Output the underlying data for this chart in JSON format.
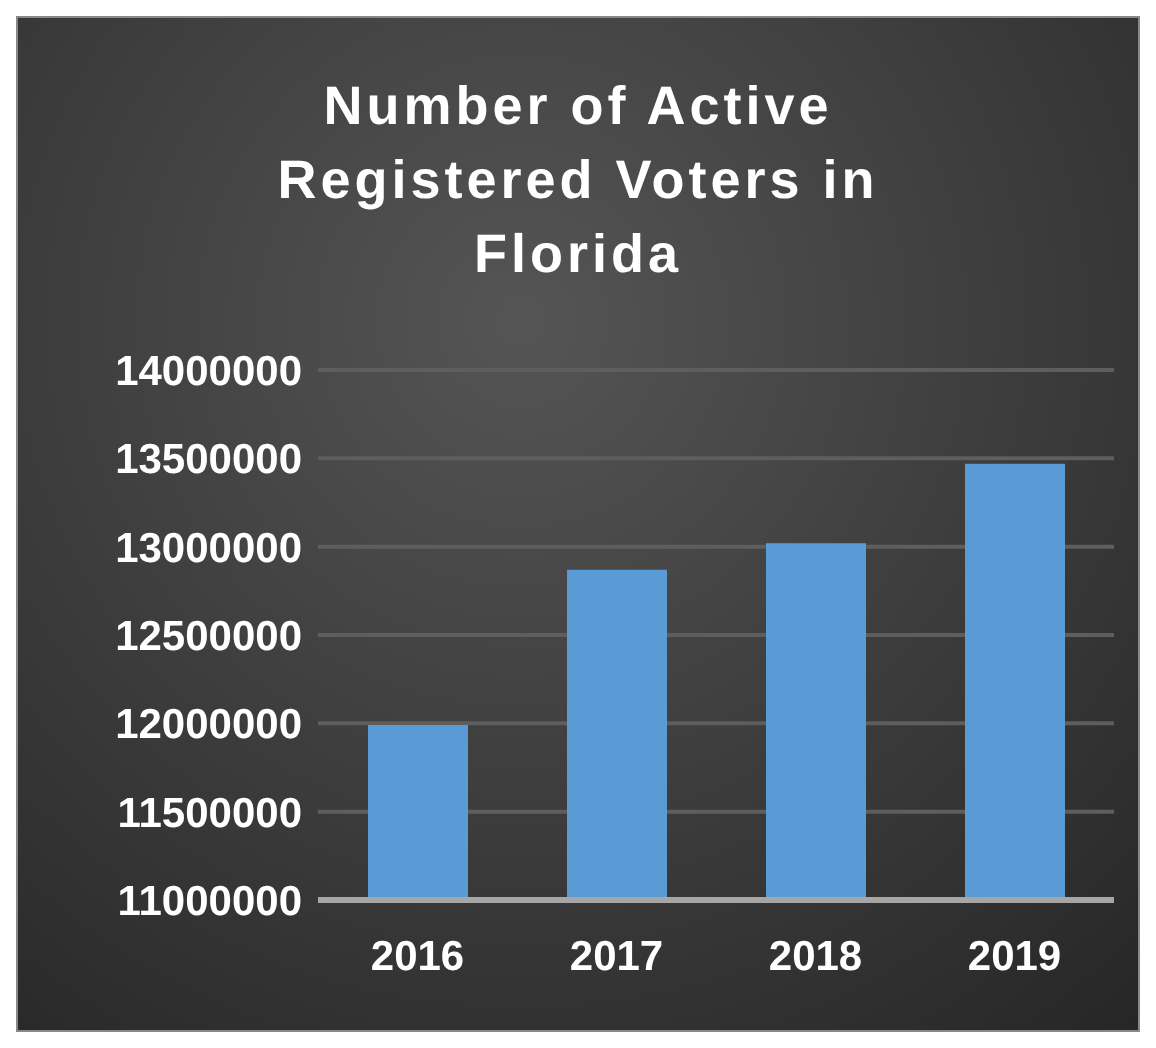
{
  "chart_data": {
    "type": "bar",
    "title": "Number of Active Registered Voters in Florida",
    "categories": [
      "2016",
      "2017",
      "2018",
      "2019"
    ],
    "values": [
      11990000,
      12870000,
      13020000,
      13470000
    ],
    "color": "#5b9bd5",
    "ylim": [
      11000000,
      14000000
    ],
    "yticks": [
      11000000,
      11500000,
      12000000,
      12500000,
      13000000,
      13500000,
      14000000
    ],
    "grid": "y",
    "legend": false
  }
}
